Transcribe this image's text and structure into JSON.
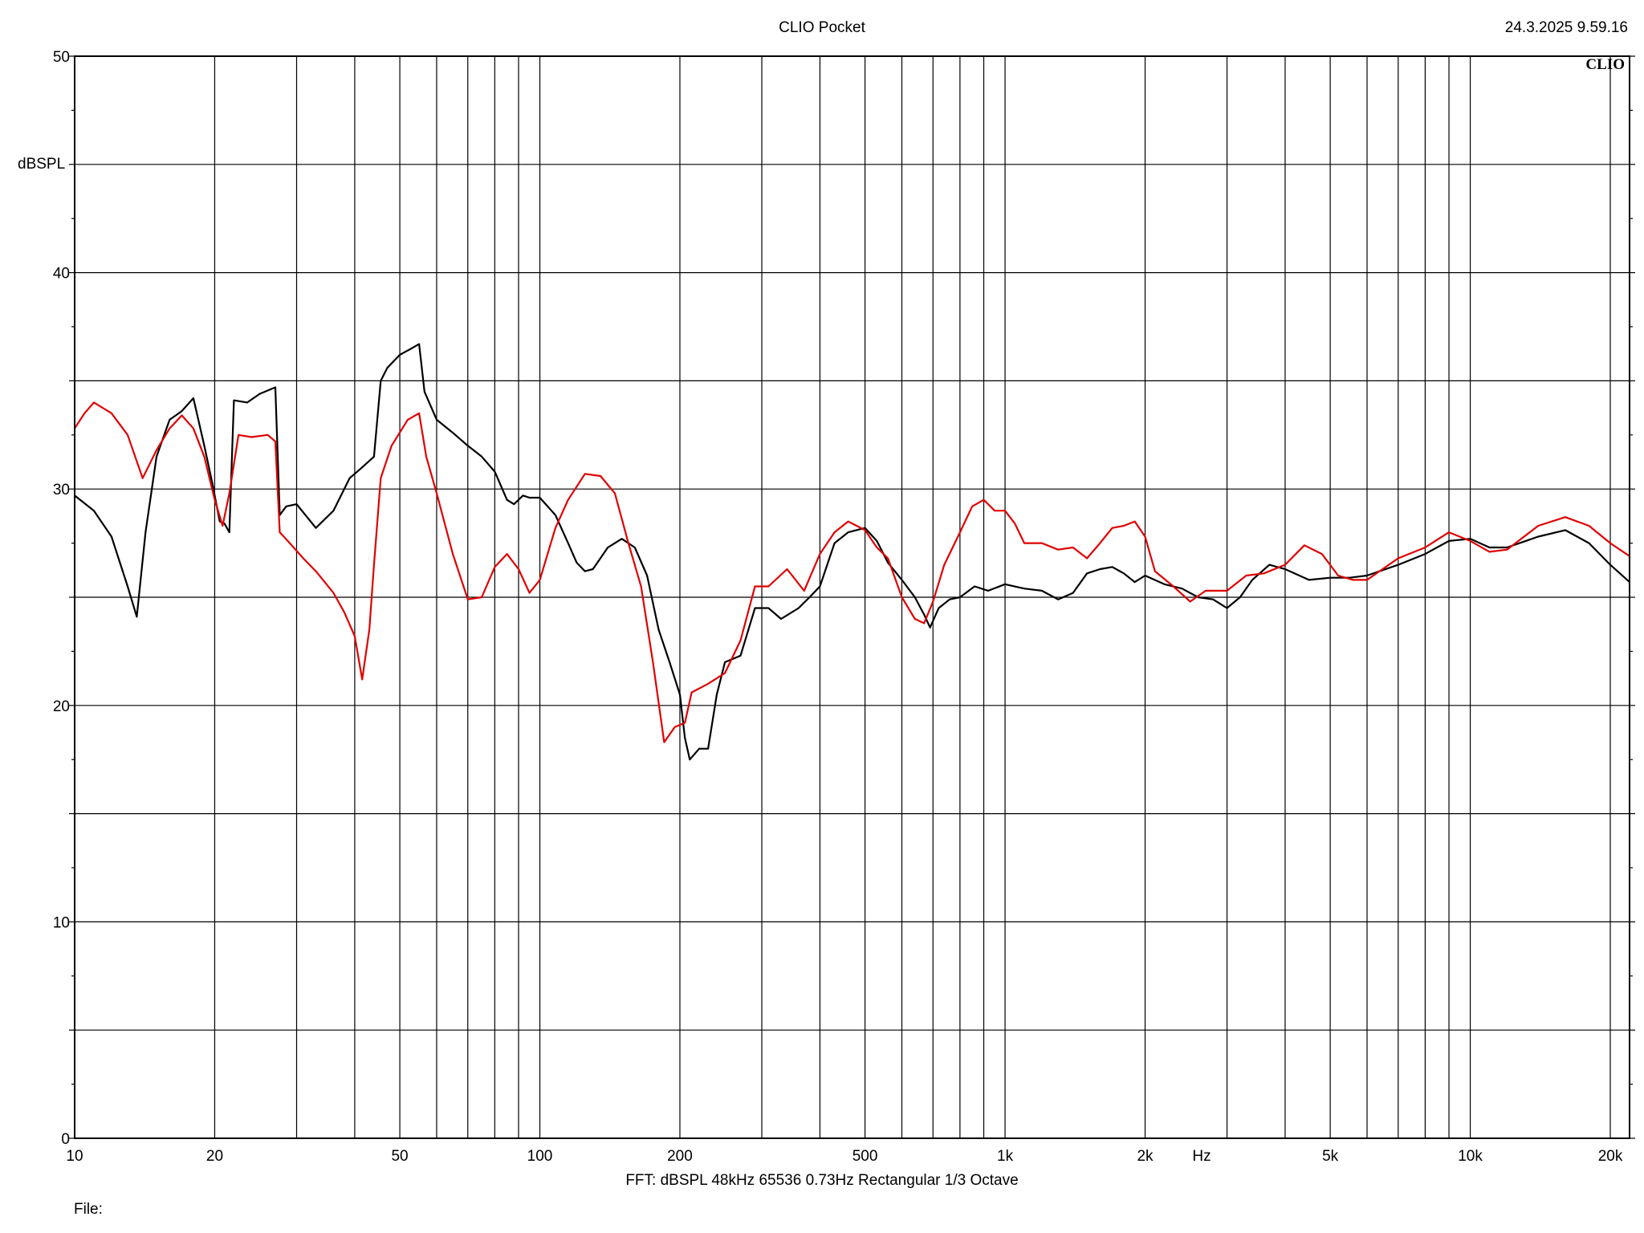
{
  "app": {
    "title": "CLIO Pocket",
    "datetime": "24.3.2025 9.59.16",
    "logo_text": "CLIO",
    "bottom_info": "FFT:  dBSPL  48kHz   65536  0.73Hz  Rectangular  1/3 Octave",
    "file_label": "File:"
  },
  "colors": {
    "series_1": "#000000",
    "series_2": "#e00000",
    "grid": "#000000",
    "background": "#ffffff"
  },
  "chart_data": {
    "type": "line",
    "title": "CLIO Pocket",
    "xlabel": "Hz",
    "ylabel": "dBSPL",
    "xscale": "log",
    "xlim": [
      10,
      22000
    ],
    "ylim": [
      0,
      50
    ],
    "grid": true,
    "x_ticks": [
      {
        "value": 10,
        "label": "10"
      },
      {
        "value": 20,
        "label": "20"
      },
      {
        "value": 50,
        "label": "50"
      },
      {
        "value": 100,
        "label": "100"
      },
      {
        "value": 200,
        "label": "200"
      },
      {
        "value": 500,
        "label": "500"
      },
      {
        "value": 1000,
        "label": "1k"
      },
      {
        "value": 2000,
        "label": "2k"
      },
      {
        "value": 5000,
        "label": "5k"
      },
      {
        "value": 10000,
        "label": "10k"
      },
      {
        "value": 20000,
        "label": "20k"
      }
    ],
    "y_ticks": [
      {
        "value": 0,
        "label": "0"
      },
      {
        "value": 10,
        "label": "10"
      },
      {
        "value": 20,
        "label": "20"
      },
      {
        "value": 30,
        "label": "30"
      },
      {
        "value": 40,
        "label": "40"
      },
      {
        "value": 50,
        "label": "50"
      }
    ],
    "series": [
      {
        "color": "#000000",
        "points": [
          [
            10,
            29.7
          ],
          [
            11,
            29.0
          ],
          [
            12,
            27.8
          ],
          [
            13,
            25.5
          ],
          [
            13.6,
            24.1
          ],
          [
            14.2,
            28.0
          ],
          [
            15,
            31.5
          ],
          [
            16,
            33.2
          ],
          [
            17,
            33.6
          ],
          [
            18,
            34.2
          ],
          [
            19,
            32.0
          ],
          [
            19.8,
            30.2
          ],
          [
            20.5,
            28.5
          ],
          [
            21,
            28.4
          ],
          [
            21.5,
            28.0
          ],
          [
            22,
            34.1
          ],
          [
            23.5,
            34.0
          ],
          [
            25,
            34.4
          ],
          [
            27,
            34.7
          ],
          [
            27.6,
            28.8
          ],
          [
            28.5,
            29.2
          ],
          [
            30,
            29.3
          ],
          [
            33,
            28.2
          ],
          [
            36,
            29.0
          ],
          [
            39,
            30.5
          ],
          [
            41.5,
            31.0
          ],
          [
            44,
            31.5
          ],
          [
            45.5,
            35.0
          ],
          [
            47,
            35.6
          ],
          [
            50,
            36.2
          ],
          [
            53,
            36.5
          ],
          [
            55,
            36.7
          ],
          [
            56.5,
            34.5
          ],
          [
            60,
            33.2
          ],
          [
            65,
            32.6
          ],
          [
            70,
            32.0
          ],
          [
            75,
            31.5
          ],
          [
            80,
            30.8
          ],
          [
            85,
            29.5
          ],
          [
            88,
            29.3
          ],
          [
            92,
            29.7
          ],
          [
            95,
            29.6
          ],
          [
            100,
            29.6
          ],
          [
            108,
            28.8
          ],
          [
            115,
            27.5
          ],
          [
            120,
            26.6
          ],
          [
            125,
            26.2
          ],
          [
            130,
            26.3
          ],
          [
            140,
            27.3
          ],
          [
            150,
            27.7
          ],
          [
            160,
            27.3
          ],
          [
            170,
            26.0
          ],
          [
            180,
            23.5
          ],
          [
            190,
            22.0
          ],
          [
            200,
            20.5
          ],
          [
            205,
            18.5
          ],
          [
            210,
            17.5
          ],
          [
            220,
            18.0
          ],
          [
            230,
            18.0
          ],
          [
            240,
            20.5
          ],
          [
            250,
            22.0
          ],
          [
            270,
            22.3
          ],
          [
            290,
            24.5
          ],
          [
            310,
            24.5
          ],
          [
            330,
            24.0
          ],
          [
            360,
            24.5
          ],
          [
            380,
            25.0
          ],
          [
            400,
            25.5
          ],
          [
            430,
            27.5
          ],
          [
            460,
            28.0
          ],
          [
            500,
            28.2
          ],
          [
            530,
            27.6
          ],
          [
            560,
            26.6
          ],
          [
            600,
            25.8
          ],
          [
            640,
            25.0
          ],
          [
            670,
            24.2
          ],
          [
            690,
            23.6
          ],
          [
            720,
            24.5
          ],
          [
            760,
            24.9
          ],
          [
            800,
            25.0
          ],
          [
            860,
            25.5
          ],
          [
            920,
            25.3
          ],
          [
            1000,
            25.6
          ],
          [
            1100,
            25.4
          ],
          [
            1200,
            25.3
          ],
          [
            1300,
            24.9
          ],
          [
            1400,
            25.2
          ],
          [
            1500,
            26.1
          ],
          [
            1600,
            26.3
          ],
          [
            1700,
            26.4
          ],
          [
            1800,
            26.1
          ],
          [
            1900,
            25.7
          ],
          [
            2000,
            26.0
          ],
          [
            2200,
            25.6
          ],
          [
            2400,
            25.4
          ],
          [
            2600,
            25.0
          ],
          [
            2800,
            24.9
          ],
          [
            3000,
            24.5
          ],
          [
            3200,
            25.0
          ],
          [
            3400,
            25.8
          ],
          [
            3700,
            26.5
          ],
          [
            4000,
            26.3
          ],
          [
            4500,
            25.8
          ],
          [
            5000,
            25.9
          ],
          [
            5500,
            25.9
          ],
          [
            6000,
            26.0
          ],
          [
            7000,
            26.5
          ],
          [
            8000,
            27.0
          ],
          [
            9000,
            27.6
          ],
          [
            10000,
            27.7
          ],
          [
            11000,
            27.3
          ],
          [
            12000,
            27.3
          ],
          [
            14000,
            27.8
          ],
          [
            16000,
            28.1
          ],
          [
            18000,
            27.5
          ],
          [
            20000,
            26.5
          ],
          [
            22000,
            25.7
          ]
        ]
      },
      {
        "color": "#e00000",
        "points": [
          [
            10,
            32.8
          ],
          [
            10.5,
            33.5
          ],
          [
            11,
            34.0
          ],
          [
            12,
            33.5
          ],
          [
            13,
            32.5
          ],
          [
            14,
            30.5
          ],
          [
            15,
            31.8
          ],
          [
            16,
            32.8
          ],
          [
            17,
            33.4
          ],
          [
            18,
            32.8
          ],
          [
            19,
            31.5
          ],
          [
            20,
            29.5
          ],
          [
            20.8,
            28.3
          ],
          [
            21.5,
            29.8
          ],
          [
            22.5,
            32.5
          ],
          [
            24,
            32.4
          ],
          [
            26,
            32.5
          ],
          [
            27,
            32.2
          ],
          [
            27.6,
            28.0
          ],
          [
            29,
            27.5
          ],
          [
            31,
            26.8
          ],
          [
            33,
            26.2
          ],
          [
            36,
            25.2
          ],
          [
            38,
            24.3
          ],
          [
            40,
            23.2
          ],
          [
            41.5,
            21.2
          ],
          [
            43,
            23.5
          ],
          [
            44,
            26.5
          ],
          [
            45.5,
            30.5
          ],
          [
            48,
            32.0
          ],
          [
            52,
            33.2
          ],
          [
            55,
            33.5
          ],
          [
            57,
            31.5
          ],
          [
            60,
            29.8
          ],
          [
            65,
            27.0
          ],
          [
            70,
            24.9
          ],
          [
            75,
            25.0
          ],
          [
            80,
            26.4
          ],
          [
            85,
            27.0
          ],
          [
            90,
            26.3
          ],
          [
            95,
            25.2
          ],
          [
            100,
            25.8
          ],
          [
            108,
            28.2
          ],
          [
            115,
            29.5
          ],
          [
            125,
            30.7
          ],
          [
            135,
            30.6
          ],
          [
            145,
            29.8
          ],
          [
            155,
            27.5
          ],
          [
            165,
            25.5
          ],
          [
            175,
            22.0
          ],
          [
            185,
            18.3
          ],
          [
            195,
            19.0
          ],
          [
            205,
            19.2
          ],
          [
            212,
            20.6
          ],
          [
            230,
            21.0
          ],
          [
            250,
            21.5
          ],
          [
            270,
            23.0
          ],
          [
            290,
            25.5
          ],
          [
            310,
            25.5
          ],
          [
            340,
            26.3
          ],
          [
            370,
            25.3
          ],
          [
            400,
            27.0
          ],
          [
            430,
            28.0
          ],
          [
            460,
            28.5
          ],
          [
            500,
            28.1
          ],
          [
            530,
            27.3
          ],
          [
            560,
            26.8
          ],
          [
            600,
            25.0
          ],
          [
            640,
            24.0
          ],
          [
            670,
            23.8
          ],
          [
            700,
            24.8
          ],
          [
            740,
            26.5
          ],
          [
            800,
            28.0
          ],
          [
            850,
            29.2
          ],
          [
            900,
            29.5
          ],
          [
            950,
            29.0
          ],
          [
            1000,
            29.0
          ],
          [
            1050,
            28.4
          ],
          [
            1100,
            27.5
          ],
          [
            1200,
            27.5
          ],
          [
            1300,
            27.2
          ],
          [
            1400,
            27.3
          ],
          [
            1500,
            26.8
          ],
          [
            1600,
            27.5
          ],
          [
            1700,
            28.2
          ],
          [
            1800,
            28.3
          ],
          [
            1900,
            28.5
          ],
          [
            2000,
            27.8
          ],
          [
            2100,
            26.2
          ],
          [
            2300,
            25.5
          ],
          [
            2500,
            24.8
          ],
          [
            2700,
            25.3
          ],
          [
            3000,
            25.3
          ],
          [
            3300,
            26.0
          ],
          [
            3600,
            26.1
          ],
          [
            4000,
            26.5
          ],
          [
            4400,
            27.4
          ],
          [
            4800,
            27.0
          ],
          [
            5200,
            26.0
          ],
          [
            5600,
            25.8
          ],
          [
            6000,
            25.8
          ],
          [
            7000,
            26.8
          ],
          [
            8000,
            27.3
          ],
          [
            9000,
            28.0
          ],
          [
            10000,
            27.6
          ],
          [
            11000,
            27.1
          ],
          [
            12000,
            27.2
          ],
          [
            14000,
            28.3
          ],
          [
            16000,
            28.7
          ],
          [
            18000,
            28.3
          ],
          [
            20000,
            27.5
          ],
          [
            22000,
            26.9
          ]
        ]
      }
    ]
  }
}
